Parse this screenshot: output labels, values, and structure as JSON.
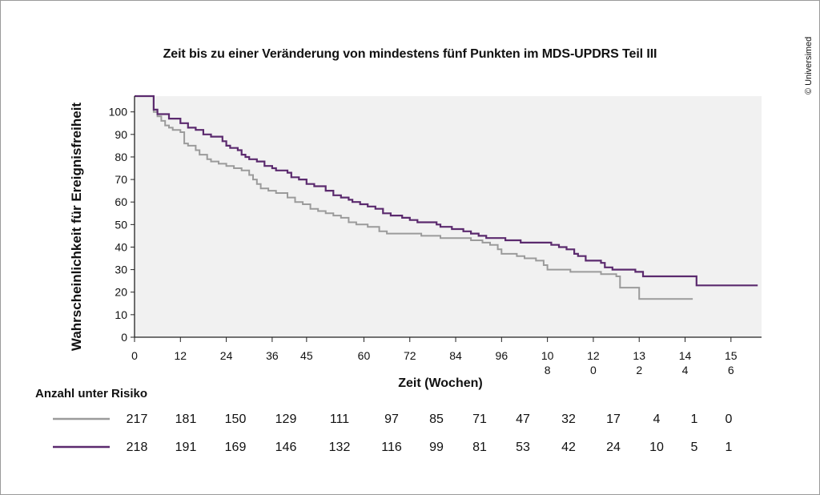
{
  "title": "Zeit bis zu einer Veränderung von mindestens fünf Punkten im MDS-UPDRS Teil III",
  "copyright": "© Universimed",
  "colors": {
    "series1": "#9b9b9b",
    "series2": "#5b2a6e",
    "plot_background": "#f1f1f1",
    "axis": "#222222"
  },
  "chart_data": {
    "type": "line",
    "step": true,
    "grid": false,
    "xlabel": "Zeit (Wochen)",
    "ylabel": "Wahrscheinlichkeit für Ereignisfreiheit",
    "xlim": [
      0,
      164
    ],
    "ylim": [
      0,
      107
    ],
    "x_ticks": [
      0,
      12,
      24,
      36,
      45,
      60,
      72,
      84,
      96,
      108,
      120,
      132,
      144,
      156
    ],
    "x_tick_labels": [
      "0",
      "12",
      "24",
      "36",
      "45",
      "60",
      "72",
      "84",
      "96",
      "10\n8",
      "12\n0",
      "13\n2",
      "14\n4",
      "15\n6"
    ],
    "y_ticks": [
      0,
      10,
      20,
      30,
      40,
      50,
      60,
      70,
      80,
      90,
      100
    ],
    "series": [
      {
        "color": "#9b9b9b",
        "points": [
          [
            0,
            107
          ],
          [
            4,
            107
          ],
          [
            5,
            100
          ],
          [
            6,
            98
          ],
          [
            7,
            96
          ],
          [
            8,
            94
          ],
          [
            9,
            93
          ],
          [
            10,
            92
          ],
          [
            12,
            91
          ],
          [
            13,
            86
          ],
          [
            14,
            85
          ],
          [
            16,
            83
          ],
          [
            17,
            81
          ],
          [
            19,
            79
          ],
          [
            20,
            78
          ],
          [
            22,
            77
          ],
          [
            24,
            76
          ],
          [
            26,
            75
          ],
          [
            28,
            74
          ],
          [
            30,
            72
          ],
          [
            31,
            70
          ],
          [
            32,
            68
          ],
          [
            33,
            66
          ],
          [
            35,
            65
          ],
          [
            37,
            64
          ],
          [
            40,
            62
          ],
          [
            42,
            60
          ],
          [
            44,
            59
          ],
          [
            46,
            57
          ],
          [
            48,
            56
          ],
          [
            50,
            55
          ],
          [
            52,
            54
          ],
          [
            54,
            53
          ],
          [
            56,
            51
          ],
          [
            58,
            50
          ],
          [
            61,
            49
          ],
          [
            64,
            47
          ],
          [
            66,
            46
          ],
          [
            69,
            46
          ],
          [
            75,
            45
          ],
          [
            80,
            44
          ],
          [
            86,
            44
          ],
          [
            88,
            43
          ],
          [
            91,
            42
          ],
          [
            93,
            41
          ],
          [
            95,
            39
          ],
          [
            96,
            37
          ],
          [
            100,
            36
          ],
          [
            102,
            35
          ],
          [
            105,
            34
          ],
          [
            107,
            32
          ],
          [
            108,
            30
          ],
          [
            114,
            29
          ],
          [
            119,
            29
          ],
          [
            122,
            28
          ],
          [
            126,
            27
          ],
          [
            127,
            22
          ],
          [
            131,
            22
          ],
          [
            132,
            17
          ],
          [
            146,
            17
          ]
        ]
      },
      {
        "color": "#5b2a6e",
        "points": [
          [
            0,
            107
          ],
          [
            4,
            107
          ],
          [
            5,
            101
          ],
          [
            6,
            99
          ],
          [
            9,
            97
          ],
          [
            12,
            95
          ],
          [
            14,
            93
          ],
          [
            16,
            92
          ],
          [
            18,
            90
          ],
          [
            20,
            89
          ],
          [
            23,
            87
          ],
          [
            24,
            85
          ],
          [
            25,
            84
          ],
          [
            27,
            83
          ],
          [
            28,
            81
          ],
          [
            29,
            80
          ],
          [
            30,
            79
          ],
          [
            32,
            78
          ],
          [
            34,
            76
          ],
          [
            36,
            75
          ],
          [
            37,
            74
          ],
          [
            40,
            73
          ],
          [
            41,
            71
          ],
          [
            43,
            70
          ],
          [
            45,
            68
          ],
          [
            47,
            67
          ],
          [
            50,
            65
          ],
          [
            52,
            63
          ],
          [
            54,
            62
          ],
          [
            56,
            61
          ],
          [
            57,
            60
          ],
          [
            59,
            59
          ],
          [
            61,
            58
          ],
          [
            63,
            57
          ],
          [
            65,
            55
          ],
          [
            67,
            54
          ],
          [
            70,
            53
          ],
          [
            72,
            52
          ],
          [
            74,
            51
          ],
          [
            79,
            50
          ],
          [
            80,
            49
          ],
          [
            83,
            48
          ],
          [
            86,
            47
          ],
          [
            88,
            46
          ],
          [
            90,
            45
          ],
          [
            92,
            44
          ],
          [
            97,
            43
          ],
          [
            101,
            42
          ],
          [
            108,
            42
          ],
          [
            109,
            41
          ],
          [
            111,
            40
          ],
          [
            113,
            39
          ],
          [
            115,
            37
          ],
          [
            116,
            36
          ],
          [
            118,
            34
          ],
          [
            122,
            33
          ],
          [
            123,
            31
          ],
          [
            125,
            30
          ],
          [
            131,
            29
          ],
          [
            133,
            27
          ],
          [
            147,
            27
          ],
          [
            147,
            23
          ],
          [
            163,
            23
          ]
        ]
      }
    ]
  },
  "risk_table": {
    "title": "Anzahl unter Risiko",
    "rows": [
      {
        "color": "#9b9b9b",
        "values": [
          "217",
          "181",
          "150",
          "129",
          "111",
          "97",
          "85",
          "71",
          "47",
          "32",
          "17",
          "4",
          "1",
          "0"
        ]
      },
      {
        "color": "#5b2a6e",
        "values": [
          "218",
          "191",
          "169",
          "146",
          "132",
          "116",
          "99",
          "81",
          "53",
          "42",
          "24",
          "10",
          "5",
          "1"
        ]
      }
    ]
  }
}
